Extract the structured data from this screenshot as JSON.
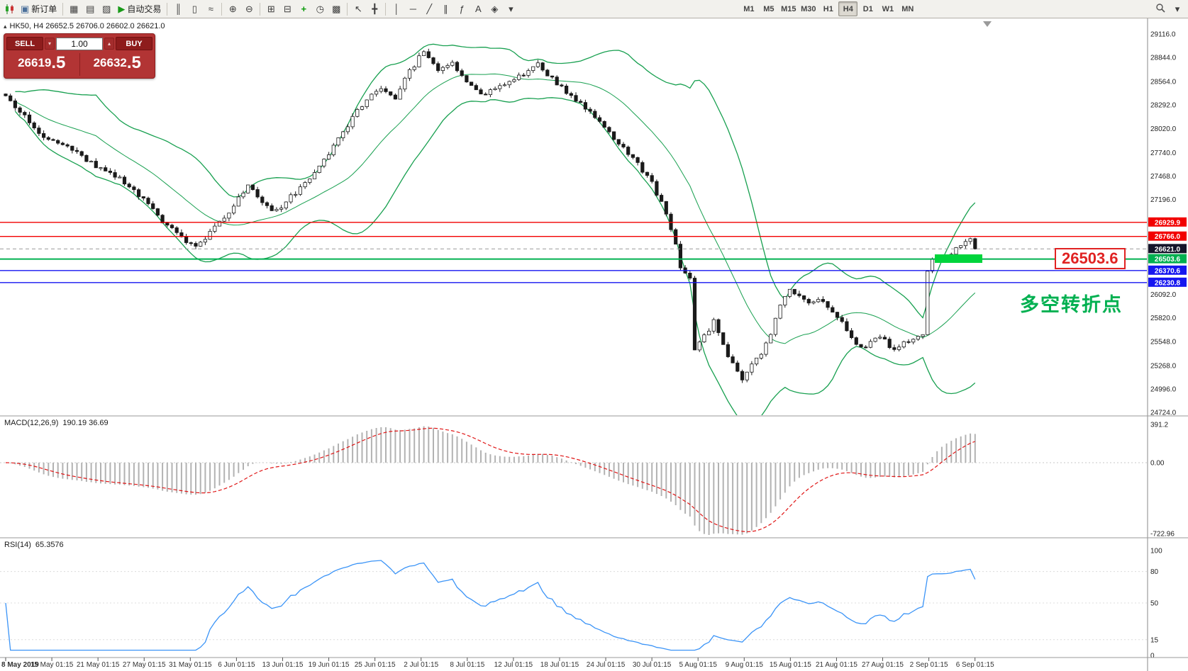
{
  "toolbar": {
    "new_order_label": "新订单",
    "autotrading_label": "自动交易",
    "timeframes": [
      "M1",
      "M5",
      "M15",
      "M30",
      "H1",
      "H4",
      "D1",
      "W1",
      "MN"
    ],
    "active_timeframe": "H4"
  },
  "icons": {
    "new_order": "▣",
    "charts_window": "▦",
    "profiles": "▤",
    "market_watch": "▨",
    "autotrading_play": "▶",
    "bar_chart": "║",
    "candle_chart": "▯",
    "line_chart": "≈",
    "zoom_in": "⊕",
    "zoom_out": "⊖",
    "tile_windows": "⊞",
    "cascade_windows": "⊟",
    "indicators": "+",
    "periods": "◷",
    "templates": "▩",
    "cursor": "↖",
    "crosshair": "╋",
    "vline": "│",
    "hline": "─",
    "trendline": "╱",
    "channel": "∥",
    "fibonacci": "ƒ",
    "text": "A",
    "arrows": "◈",
    "dropdown": "▾",
    "collapse_marker": "▴",
    "spin_up": "▴",
    "spin_down": "▾"
  },
  "chart": {
    "symbol_ohlc_line": "HK50, H4  26652.5 26706.0 26602.0 26621.0",
    "trade_panel": {
      "sell_label": "SELL",
      "buy_label": "BUY",
      "volume": "1.00",
      "sell_price_main": "26619",
      "sell_price_pips": ".5",
      "buy_price_main": "26632",
      "buy_price_pips": ".5"
    },
    "annotation_text": "多空转折点",
    "big_price_label": "26503.6",
    "macd_label": "MACD(12,26,9)",
    "macd_values": "190.19 36.69",
    "rsi_label": "RSI(14)",
    "rsi_value": "65.3576"
  },
  "chart_data": {
    "type": "candlestick",
    "symbol": "HK50",
    "timeframe": "H4",
    "current_bar": {
      "open": 26652.5,
      "high": 26706.0,
      "low": 26602.0,
      "close": 26621.0
    },
    "bid": 26619.5,
    "ask": 26632.5,
    "price_axis_labels": [
      29116.0,
      28844.0,
      28564.0,
      28292.0,
      28020.0,
      27740.0,
      27468.0,
      27196.0,
      26092.0,
      25820.0,
      25548.0,
      25268.0,
      24996.0,
      24724.0
    ],
    "hlines": [
      {
        "price": 26929.9,
        "color": "#f20000",
        "width": 1.4,
        "style": "solid",
        "tag_bg": "#f20000"
      },
      {
        "price": 26766.0,
        "color": "#f20000",
        "width": 1.4,
        "style": "solid",
        "tag_bg": "#f20000"
      },
      {
        "price": 26621.0,
        "color": "#9a9a9a",
        "width": 1,
        "style": "dashed",
        "tag_bg": "#15152a"
      },
      {
        "price": 26503.6,
        "color": "#00b050",
        "width": 2,
        "style": "solid",
        "tag_bg": "#00b050"
      },
      {
        "price": 26370.6,
        "color": "#1616f0",
        "width": 1.4,
        "style": "solid",
        "tag_bg": "#1616f0"
      },
      {
        "price": 26230.8,
        "color": "#1616f0",
        "width": 1.4,
        "style": "solid",
        "tag_bg": "#1616f0"
      }
    ],
    "bollinger": {
      "period": 20,
      "deviation": 2,
      "color": "#18a050"
    },
    "price_path_anchors": [
      [
        0,
        28380
      ],
      [
        3,
        28230
      ],
      [
        6,
        28020
      ],
      [
        9,
        27900
      ],
      [
        12,
        27830
      ],
      [
        15,
        27740
      ],
      [
        18,
        27620
      ],
      [
        21,
        27520
      ],
      [
        24,
        27430
      ],
      [
        27,
        27300
      ],
      [
        30,
        27130
      ],
      [
        33,
        26950
      ],
      [
        36,
        26820
      ],
      [
        38,
        26700
      ],
      [
        40,
        26660
      ],
      [
        42,
        26740
      ],
      [
        45,
        26920
      ],
      [
        48,
        27120
      ],
      [
        51,
        27360
      ],
      [
        54,
        27180
      ],
      [
        56,
        27060
      ],
      [
        58,
        27120
      ],
      [
        61,
        27280
      ],
      [
        64,
        27420
      ],
      [
        67,
        27650
      ],
      [
        70,
        27900
      ],
      [
        73,
        28150
      ],
      [
        76,
        28360
      ],
      [
        79,
        28470
      ],
      [
        82,
        28380
      ],
      [
        85,
        28680
      ],
      [
        88,
        28920
      ],
      [
        91,
        28700
      ],
      [
        94,
        28770
      ],
      [
        97,
        28540
      ],
      [
        100,
        28400
      ],
      [
        103,
        28470
      ],
      [
        106,
        28560
      ],
      [
        109,
        28650
      ],
      [
        112,
        28760
      ],
      [
        115,
        28600
      ],
      [
        118,
        28440
      ],
      [
        121,
        28310
      ],
      [
        124,
        28160
      ],
      [
        127,
        27980
      ],
      [
        130,
        27780
      ],
      [
        133,
        27600
      ],
      [
        136,
        27380
      ],
      [
        139,
        27050
      ],
      [
        141,
        26680
      ],
      [
        142,
        26420
      ],
      [
        144,
        26280
      ],
      [
        145,
        25430
      ],
      [
        147,
        25600
      ],
      [
        149,
        25780
      ],
      [
        151,
        25500
      ],
      [
        153,
        25280
      ],
      [
        155,
        25120
      ],
      [
        157,
        25260
      ],
      [
        159,
        25400
      ],
      [
        161,
        25650
      ],
      [
        163,
        25980
      ],
      [
        165,
        26130
      ],
      [
        167,
        26080
      ],
      [
        169,
        25990
      ],
      [
        171,
        26060
      ],
      [
        174,
        25900
      ],
      [
        177,
        25680
      ],
      [
        179,
        25520
      ],
      [
        181,
        25460
      ],
      [
        183,
        25610
      ],
      [
        185,
        25550
      ],
      [
        187,
        25440
      ],
      [
        189,
        25530
      ],
      [
        191,
        25560
      ],
      [
        193,
        25600
      ],
      [
        194,
        26350
      ],
      [
        195,
        26480
      ],
      [
        197,
        26520
      ],
      [
        199,
        26580
      ],
      [
        201,
        26680
      ],
      [
        203,
        26730
      ],
      [
        204,
        26621
      ]
    ],
    "time_labels": [
      "8 May 2019",
      "15 May 01:15",
      "21 May 01:15",
      "27 May 01:15",
      "31 May 01:15",
      "6 Jun 01:15",
      "13 Jun 01:15",
      "19 Jun 01:15",
      "25 Jun 01:15",
      "2 Jul 01:15",
      "8 Jul 01:15",
      "12 Jul 01:15",
      "18 Jul 01:15",
      "24 Jul 01:15",
      "30 Jul 01:15",
      "5 Aug 01:15",
      "9 Aug 01:15",
      "15 Aug 01:15",
      "21 Aug 01:15",
      "27 Aug 01:15",
      "2 Sep 01:15",
      "6 Sep 01:15"
    ],
    "macd": {
      "params": "12,26,9",
      "main": 190.19,
      "signal": 36.69,
      "axis_labels": [
        "391.2",
        "0.00",
        "-722.96"
      ]
    },
    "rsi": {
      "period": 14,
      "value": 65.3576,
      "levels": [
        "100",
        "80",
        "50",
        "15",
        "0"
      ]
    }
  }
}
